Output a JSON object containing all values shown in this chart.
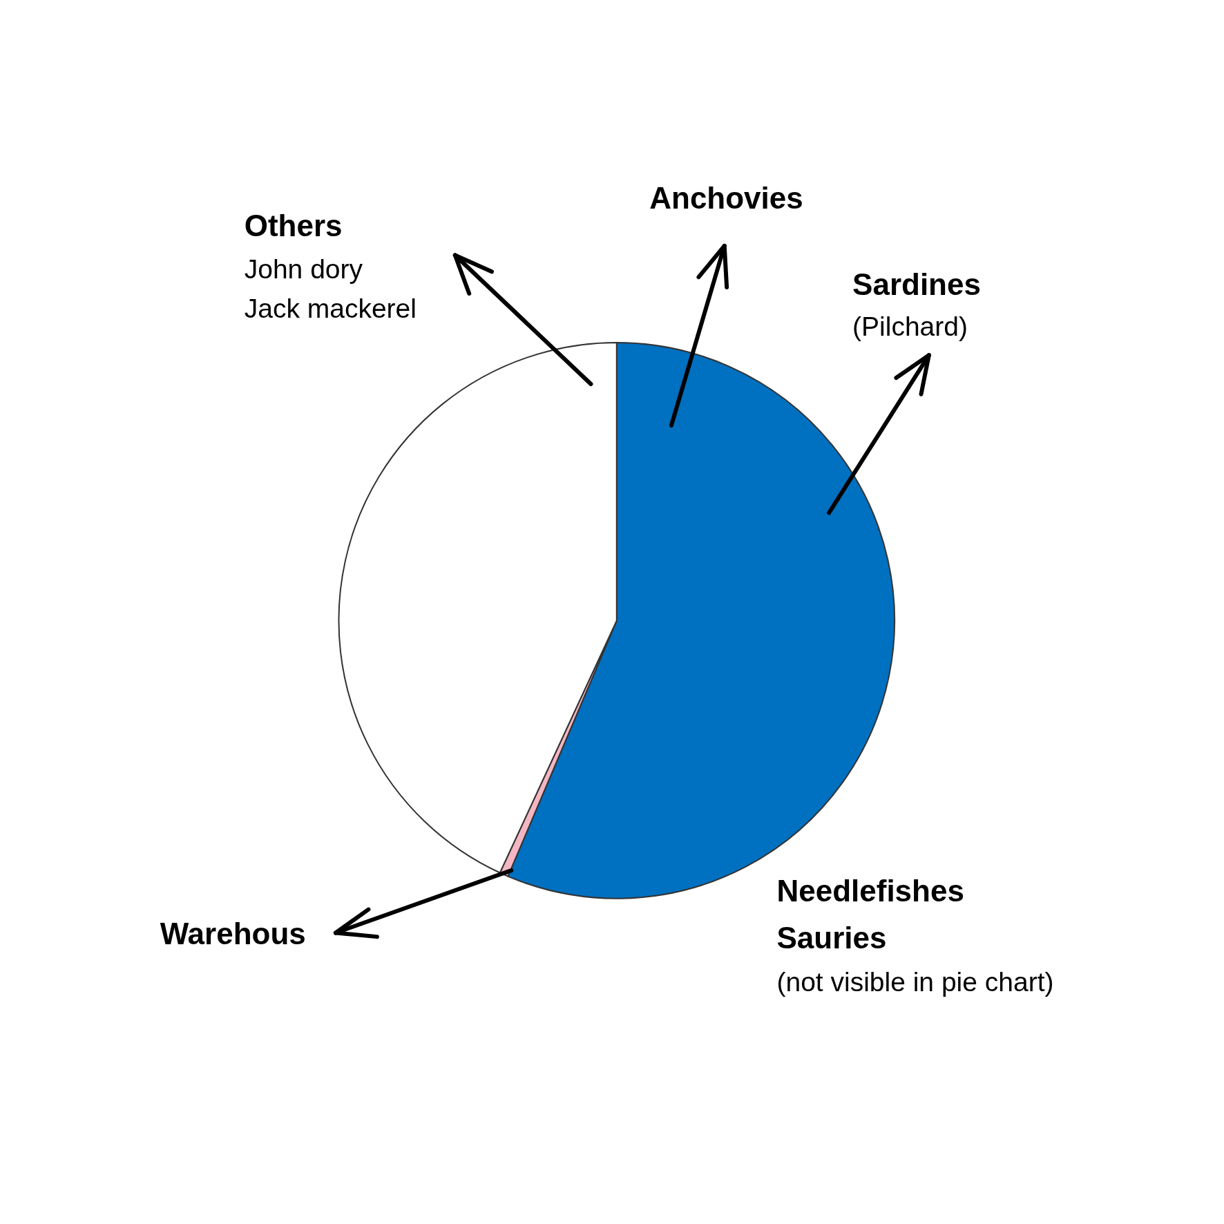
{
  "chart_data": {
    "type": "pie",
    "categories": [
      null,
      null,
      null
    ],
    "values": [
      56.4,
      0.5,
      43.1
    ],
    "colors": [
      "#0070c0",
      "#f4b6c2",
      "#ffffff"
    ],
    "annotations": [
      "Others",
      "John dory",
      "Jack mackerel",
      "Anchovies",
      "Sardines",
      "(Pilchard)",
      "Warehous",
      "Needlefishes",
      "Sauries",
      "(not visible in pie chart)"
    ]
  }
}
